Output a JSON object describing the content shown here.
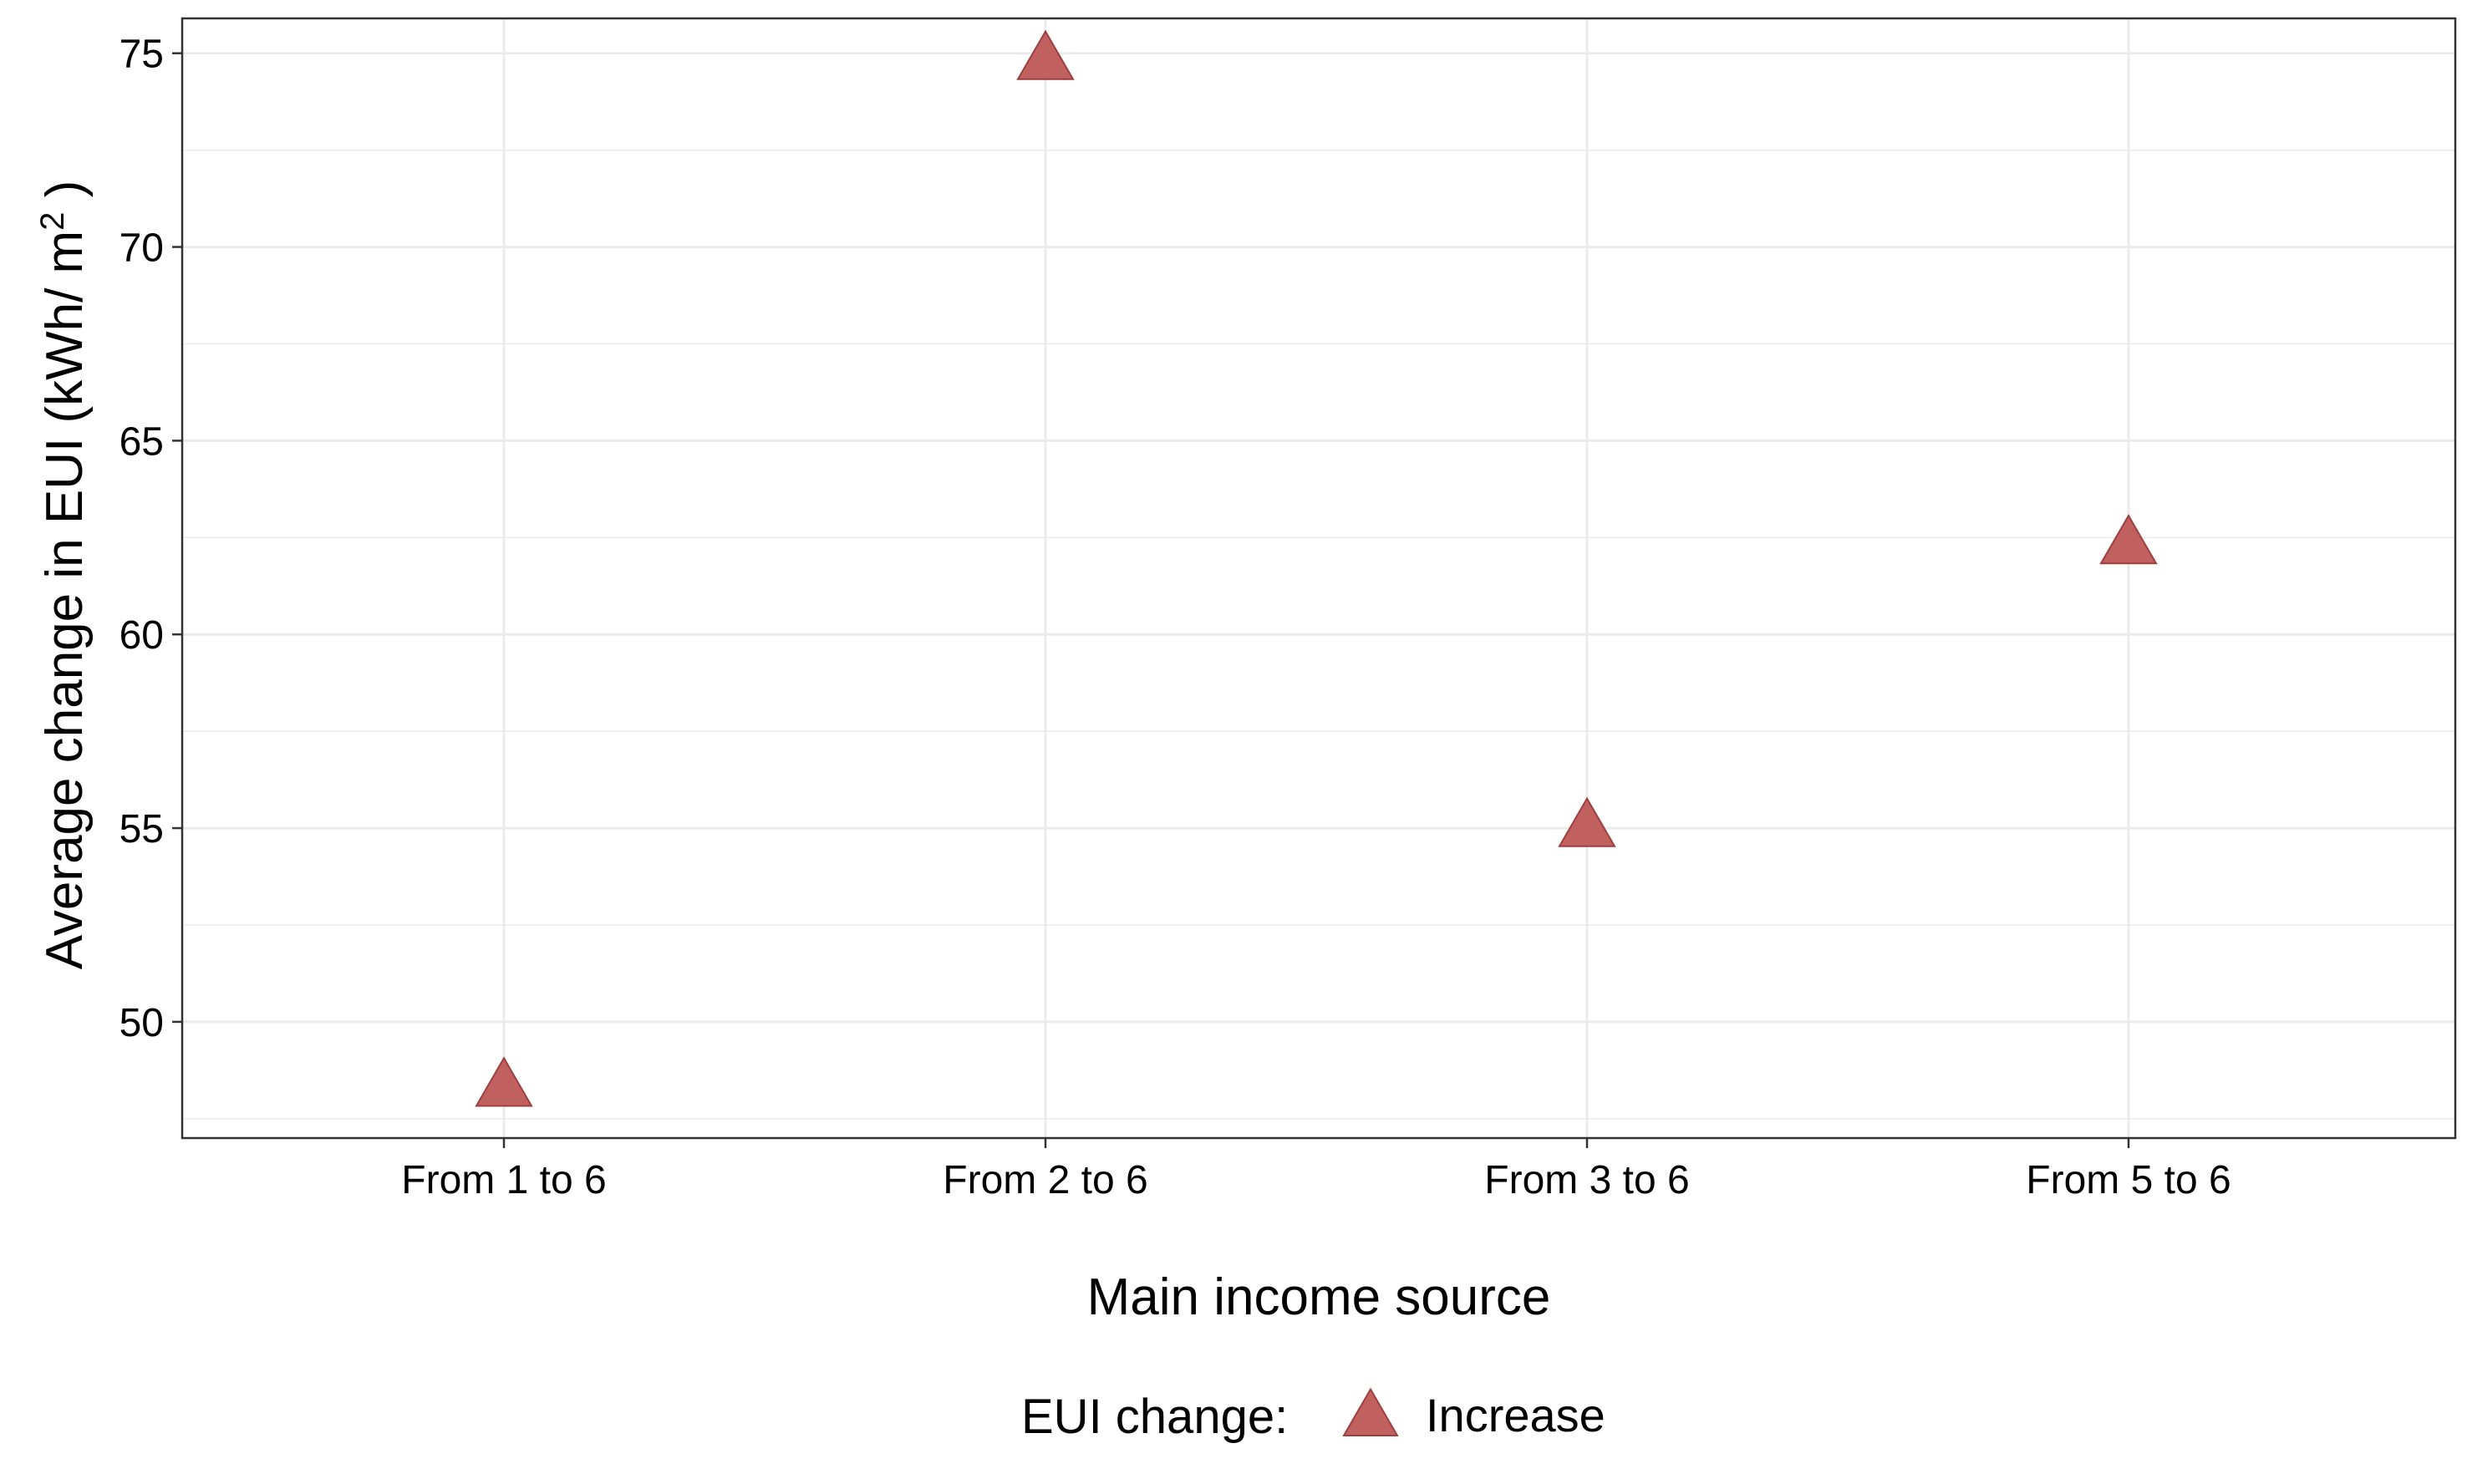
{
  "chart_data": {
    "type": "scatter",
    "title": "",
    "xlabel": "Main income source",
    "ylabel": "Average change in EUI (kWh/ m",
    "ylabel_superscript": "2",
    "ylabel_suffix": " )",
    "categories": [
      "From 1 to 6",
      "From 2 to 6",
      "From 3 to 6",
      "From 5 to 6"
    ],
    "series": [
      {
        "name": "Increase",
        "marker": "triangle",
        "color": "#C0605F",
        "stroke": "#9E3F3F",
        "values": [
          48.3,
          74.8,
          55.0,
          62.3
        ]
      }
    ],
    "ylim": [
      47,
      75.9
    ],
    "yticks": [
      50,
      55,
      60,
      65,
      70,
      75
    ],
    "y_minor_ticks": [
      47.5,
      52.5,
      57.5,
      62.5,
      67.5,
      72.5
    ],
    "grid": true,
    "legend": {
      "position": "bottom",
      "title": "EUI change:",
      "items": [
        "Increase"
      ]
    },
    "colors": {
      "grid": "#EBEBEB",
      "panel_border": "#333333",
      "marker_fill": "#C0605F",
      "marker_stroke": "#9E3F3F"
    }
  }
}
